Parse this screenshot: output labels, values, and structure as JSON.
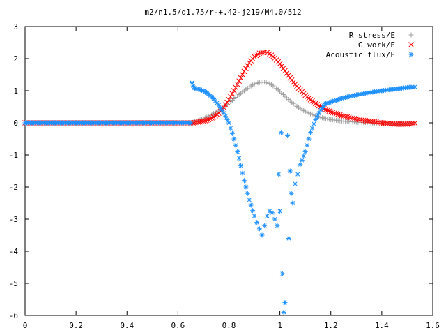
{
  "chart_data": {
    "type": "scatter",
    "title": "m2/n1.5/q1.75/r-+.42-j219/M4.0/512",
    "xlabel": "",
    "ylabel": "",
    "xlim": [
      0,
      1.6
    ],
    "ylim": [
      -6,
      3
    ],
    "xticks": [
      "0",
      "0.2",
      "0.4",
      "0.6",
      "0.8",
      "1",
      "1.2",
      "1.4",
      "1.6"
    ],
    "yticks": [
      "3",
      "2",
      "1",
      "0",
      "-1",
      "-2",
      "-3",
      "-4",
      "-5",
      "-6"
    ],
    "legend_position": "top-right",
    "grid": false,
    "series": [
      {
        "name": "R stress/E",
        "marker": "plus",
        "color": "#a0a0a0",
        "x": [
          0.0,
          0.2,
          0.4,
          0.6,
          0.65,
          0.66,
          0.68,
          0.7,
          0.72,
          0.74,
          0.76,
          0.78,
          0.8,
          0.82,
          0.84,
          0.86,
          0.88,
          0.9,
          0.92,
          0.94,
          0.96,
          0.98,
          1.0,
          1.02,
          1.04,
          1.06,
          1.08,
          1.1,
          1.12,
          1.14,
          1.16,
          1.18,
          1.2,
          1.25,
          1.3,
          1.35,
          1.4,
          1.45,
          1.5,
          1.53
        ],
        "y": [
          0.0,
          0.0,
          0.0,
          0.0,
          0.0,
          0.02,
          0.07,
          0.13,
          0.2,
          0.29,
          0.39,
          0.5,
          0.62,
          0.75,
          0.88,
          1.0,
          1.12,
          1.21,
          1.26,
          1.27,
          1.22,
          1.12,
          0.98,
          0.83,
          0.68,
          0.55,
          0.44,
          0.35,
          0.28,
          0.22,
          0.17,
          0.13,
          0.1,
          0.05,
          0.02,
          0.0,
          -0.02,
          -0.03,
          -0.03,
          -0.02
        ]
      },
      {
        "name": "G work/E",
        "marker": "cross",
        "color": "#ff0000",
        "x": [
          0.0,
          0.2,
          0.4,
          0.6,
          0.65,
          0.66,
          0.68,
          0.7,
          0.72,
          0.74,
          0.76,
          0.78,
          0.8,
          0.82,
          0.84,
          0.86,
          0.88,
          0.9,
          0.92,
          0.94,
          0.95,
          0.96,
          0.98,
          1.0,
          1.02,
          1.04,
          1.06,
          1.08,
          1.1,
          1.12,
          1.14,
          1.16,
          1.18,
          1.2,
          1.25,
          1.3,
          1.35,
          1.4,
          1.45,
          1.5,
          1.53
        ],
        "y": [
          0.0,
          0.0,
          0.0,
          0.0,
          0.0,
          0.0,
          0.02,
          0.05,
          0.1,
          0.18,
          0.3,
          0.48,
          0.72,
          1.0,
          1.3,
          1.6,
          1.87,
          2.06,
          2.17,
          2.2,
          2.19,
          2.15,
          2.02,
          1.84,
          1.62,
          1.4,
          1.2,
          1.02,
          0.86,
          0.72,
          0.6,
          0.5,
          0.41,
          0.34,
          0.21,
          0.12,
          0.05,
          0.0,
          -0.04,
          -0.04,
          -0.01
        ]
      },
      {
        "name": "Acoustic flux/E",
        "marker": "star",
        "color": "#1e90ff",
        "x": [
          0.0,
          0.2,
          0.4,
          0.6,
          0.65,
          0.655,
          0.66,
          0.665,
          0.67,
          0.68,
          0.7,
          0.72,
          0.74,
          0.76,
          0.78,
          0.8,
          0.82,
          0.84,
          0.86,
          0.88,
          0.9,
          0.91,
          0.92,
          0.93,
          0.94,
          0.95,
          0.96,
          0.97,
          0.98,
          0.99,
          1.0,
          0.995,
          1.005,
          1.01,
          1.015,
          1.02,
          1.03,
          1.035,
          1.04,
          1.045,
          1.05,
          1.06,
          1.07,
          1.08,
          1.1,
          1.12,
          1.14,
          1.16,
          1.18,
          1.2,
          1.25,
          1.3,
          1.35,
          1.4,
          1.45,
          1.5,
          1.53
        ],
        "y": [
          0.0,
          0.0,
          0.0,
          0.0,
          0.0,
          1.25,
          1.15,
          1.08,
          1.05,
          1.05,
          1.0,
          0.9,
          0.75,
          0.55,
          0.3,
          0.0,
          -0.5,
          -1.1,
          -1.8,
          -2.4,
          -2.9,
          -3.1,
          -3.3,
          -3.5,
          -3.2,
          -2.9,
          -2.75,
          -2.8,
          -3.0,
          -3.2,
          -2.75,
          -1.6,
          -0.3,
          -4.7,
          -5.9,
          -5.6,
          -0.4,
          -3.6,
          -1.5,
          -2.2,
          -2.5,
          -1.9,
          -1.6,
          -1.3,
          -0.9,
          -0.3,
          0.1,
          0.4,
          0.6,
          0.65,
          0.78,
          0.87,
          0.94,
          1.0,
          1.05,
          1.1,
          1.12
        ]
      }
    ]
  }
}
